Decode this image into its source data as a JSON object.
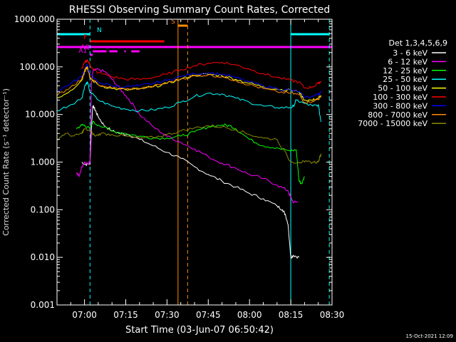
{
  "chart_data": {
    "type": "line",
    "title": "RHESSI Observing Summary Count Rates, Corrected",
    "xlabel": "Start Time (03-Jun-07 06:50:42)",
    "ylabel": "Corrected Count Rate (s⁻¹ detector⁻¹)",
    "ylog": true,
    "ylim": [
      0.001,
      1000
    ],
    "xlim_minutes_after_0650": [
      0,
      100
    ],
    "xtick_labels": [
      "07:00",
      "07:15",
      "07:30",
      "07:45",
      "08:00",
      "08:15",
      "08:30"
    ],
    "xtick_positions_minutes": [
      10,
      25,
      40,
      55,
      70,
      85,
      100
    ],
    "ytick_labels": [
      "0.001",
      "0.010",
      "0.100",
      "1.000",
      "10.000",
      "100.000",
      "1000.000"
    ],
    "ytick_values": [
      0.001,
      0.01,
      0.1,
      1,
      10,
      100,
      1000
    ],
    "legend_title": "Det 1,3,4,5,6,9",
    "legend_position": "right",
    "timestamp": "15-Oct-2021 12:09",
    "series": [
      {
        "name": "3 - 6 keV",
        "color": "#ffffff",
        "x": [
          9,
          10,
          12,
          12.5,
          13,
          13.5,
          14,
          15,
          17,
          20,
          23,
          26,
          30,
          35,
          40,
          45,
          50,
          55,
          60,
          65,
          70,
          75,
          80,
          82,
          83,
          84,
          85,
          86,
          88
        ],
        "y": [
          1.0,
          0.9,
          0.9,
          5,
          15,
          14,
          12,
          9,
          6,
          4.5,
          4.0,
          3.8,
          3.0,
          2.2,
          1.6,
          1.2,
          0.8,
          0.55,
          0.4,
          0.3,
          0.22,
          0.17,
          0.12,
          0.1,
          0.08,
          0.05,
          0.01,
          0.011,
          0.01
        ]
      },
      {
        "name": "6 - 12 keV",
        "color": "#ff00ff",
        "x": [
          7,
          8,
          9,
          10,
          11,
          12,
          12.5,
          13,
          15,
          18,
          20,
          22,
          25,
          28,
          30,
          35,
          40,
          45,
          50,
          55,
          60,
          65,
          70,
          75,
          80,
          84,
          85,
          86,
          87.5
        ],
        "y": [
          0.6,
          0.5,
          0.8,
          1.0,
          0.9,
          1.0,
          40,
          80,
          90,
          75,
          55,
          40,
          25,
          15,
          10,
          5.5,
          3.5,
          2.6,
          1.9,
          1.3,
          0.95,
          0.75,
          0.55,
          0.45,
          0.33,
          0.25,
          0.18,
          0.14,
          0.15
        ]
      },
      {
        "name": "12 - 25 keV",
        "color": "#00ff00",
        "x": [
          7,
          9,
          10,
          12,
          13,
          15,
          20,
          25,
          30,
          35,
          40,
          45,
          50,
          55,
          60,
          63,
          65,
          70,
          75,
          80,
          85,
          87,
          88,
          89,
          90
        ],
        "y": [
          5,
          6,
          6,
          5,
          7,
          6,
          4.5,
          4,
          3.5,
          3.2,
          3.2,
          3.5,
          4.3,
          5.5,
          6,
          5.8,
          5,
          3,
          2.2,
          2.0,
          1.7,
          1.8,
          0.4,
          0.35,
          0.5
        ]
      },
      {
        "name": "25 - 50 keV",
        "color": "#00ffff",
        "x": [
          0,
          5,
          9,
          10,
          11,
          12,
          15,
          20,
          25,
          30,
          35,
          40,
          45,
          50,
          55,
          60,
          65,
          70,
          75,
          80,
          85,
          86,
          87,
          90,
          93,
          95,
          96
        ],
        "y": [
          12,
          16,
          22,
          38,
          48,
          30,
          20,
          15,
          13,
          12,
          12.5,
          14,
          18,
          24,
          28,
          27,
          22,
          18,
          15,
          14,
          14,
          15,
          20,
          17,
          15,
          16,
          7
        ]
      },
      {
        "name": "50 - 100 keV",
        "color": "#ffff00",
        "x": [
          0,
          5,
          9,
          10,
          11,
          12,
          15,
          20,
          25,
          30,
          35,
          40,
          45,
          50,
          55,
          60,
          65,
          70,
          75,
          80,
          85,
          88,
          90,
          93,
          95,
          96
        ],
        "y": [
          22,
          32,
          52,
          80,
          100,
          58,
          42,
          35,
          33,
          34,
          38,
          45,
          55,
          66,
          70,
          65,
          55,
          45,
          38,
          34,
          32,
          30,
          20,
          20,
          22,
          25
        ]
      },
      {
        "name": "100 - 300 keV",
        "color": "#ff0000",
        "x": [
          9,
          10,
          11,
          12,
          13,
          15,
          20,
          25,
          30,
          35,
          40,
          45,
          50,
          55,
          60,
          65,
          70,
          75,
          80,
          85,
          88,
          90,
          93,
          95,
          96
        ],
        "y": [
          90,
          120,
          140,
          110,
          90,
          75,
          62,
          55,
          55,
          60,
          70,
          88,
          105,
          120,
          125,
          110,
          90,
          72,
          60,
          52,
          48,
          36,
          38,
          45,
          50
        ]
      },
      {
        "name": "300 - 800 keV",
        "color": "#0000ff",
        "x": [
          0,
          5,
          9,
          10,
          11,
          12,
          15,
          20,
          25,
          30,
          35,
          40,
          45,
          50,
          55,
          60,
          65,
          70,
          75,
          80,
          85,
          88,
          90,
          93,
          95,
          96
        ],
        "y": [
          30,
          45,
          62,
          90,
          110,
          70,
          48,
          40,
          38,
          40,
          45,
          52,
          63,
          72,
          75,
          70,
          60,
          48,
          40,
          35,
          32,
          30,
          23,
          24,
          27,
          30
        ]
      },
      {
        "name": "800 - 7000 keV",
        "color": "#ff8c00",
        "x": [
          0,
          5,
          9,
          10,
          11,
          12,
          15,
          20,
          25,
          30,
          35,
          40,
          45,
          50,
          55,
          60,
          65,
          70,
          75,
          80,
          85,
          88,
          90,
          93,
          95,
          96
        ],
        "y": [
          25,
          38,
          55,
          85,
          100,
          60,
          42,
          36,
          34,
          35,
          39,
          46,
          56,
          65,
          68,
          62,
          52,
          42,
          35,
          30,
          28,
          26,
          18,
          19,
          21,
          24
        ]
      },
      {
        "name": "7000 - 15000 keV",
        "color": "#8b8b00",
        "x": [
          0,
          3,
          6,
          9,
          10,
          12,
          14,
          16,
          20,
          25,
          30,
          35,
          40,
          45,
          50,
          55,
          60,
          65,
          70,
          75,
          80,
          85,
          88,
          90,
          93,
          95,
          96
        ],
        "y": [
          3,
          4,
          3.5,
          4,
          5,
          4.5,
          3.5,
          4,
          3.8,
          3.5,
          3.2,
          3.3,
          3.8,
          4.5,
          5.2,
          5.8,
          5.5,
          4.8,
          3.8,
          3.2,
          3.0,
          1.0,
          1.0,
          1.0,
          1.0,
          1.0,
          1.5
        ]
      }
    ],
    "vertical_lines": [
      {
        "x": 12,
        "color": "#00ffff",
        "style": "dashed"
      },
      {
        "x": 85,
        "color": "#00ffff",
        "style": "solid"
      },
      {
        "x": 99,
        "color": "#00ffff",
        "style": "dashed"
      },
      {
        "x": 44,
        "color": "#ff8c00",
        "style": "solid"
      },
      {
        "x": 47.5,
        "color": "#ff8c00",
        "style": "dashed"
      }
    ],
    "flag_bars": [
      {
        "label": "N",
        "color": "#00ffff",
        "segments": [
          [
            0,
            12
          ],
          [
            85,
            99
          ]
        ]
      },
      {
        "label": "S",
        "color": "#ff8c00",
        "segments": [
          [
            44,
            47.5
          ]
        ]
      },
      {
        "label": "F",
        "color": "#ff0000",
        "segments": [
          [
            12,
            39
          ]
        ]
      },
      {
        "label": "",
        "color": "#ff00ff",
        "segments": [
          [
            0,
            100
          ]
        ]
      },
      {
        "label": "AQ",
        "color": "#ff00ff",
        "segments": [
          [
            13,
            18
          ],
          [
            19,
            22
          ],
          [
            24.5,
            25
          ],
          [
            27,
            30
          ]
        ]
      },
      {
        "label": "A1",
        "color": "#ff00ff",
        "segments": [
          [
            12,
            13
          ]
        ]
      }
    ]
  }
}
